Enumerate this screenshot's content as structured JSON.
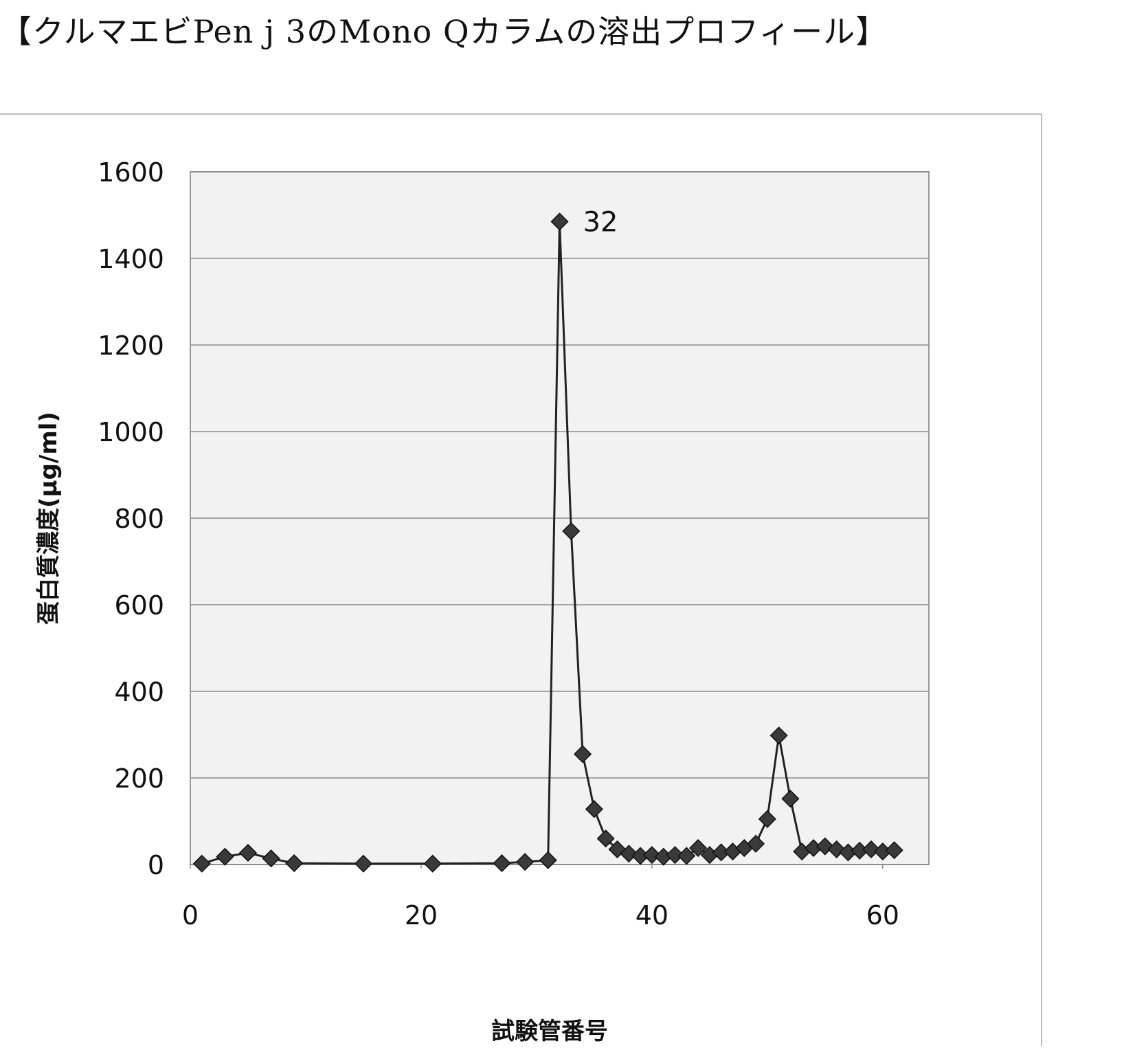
{
  "page": {
    "title": "【クルマエビPen j 3のMono Qカラムの溶出プロフィール】"
  },
  "chart_data": {
    "type": "line",
    "title": "",
    "xlabel": "試験管番号",
    "ylabel": "蛋白質濃度(μg/ml)",
    "xlim": [
      0,
      64
    ],
    "ylim": [
      0,
      1600
    ],
    "x_ticks": [
      0,
      20,
      40,
      60
    ],
    "y_ticks": [
      0,
      200,
      400,
      600,
      800,
      1000,
      1200,
      1400,
      1600
    ],
    "grid": "horizontal",
    "marker": "diamond",
    "color": "#222222",
    "plot_background": "#f2f2f2",
    "annotations": [
      {
        "text": "32",
        "x": 32,
        "y": 1485
      }
    ],
    "series": [
      {
        "x": [
          1,
          3,
          5,
          7,
          9,
          15,
          21,
          27,
          29,
          31,
          32,
          33,
          34,
          35,
          36,
          37,
          38,
          39,
          40,
          41,
          42,
          43,
          44,
          45,
          46,
          47,
          48,
          49,
          50,
          51,
          52,
          53,
          54,
          55,
          56,
          57,
          58,
          59,
          60,
          61
        ],
        "y": [
          2,
          18,
          27,
          14,
          3,
          2,
          2,
          3,
          6,
          10,
          1485,
          770,
          255,
          128,
          60,
          35,
          25,
          20,
          22,
          18,
          22,
          20,
          38,
          22,
          28,
          30,
          38,
          48,
          105,
          298,
          152,
          30,
          38,
          42,
          35,
          28,
          32,
          35,
          30,
          33
        ]
      }
    ]
  }
}
